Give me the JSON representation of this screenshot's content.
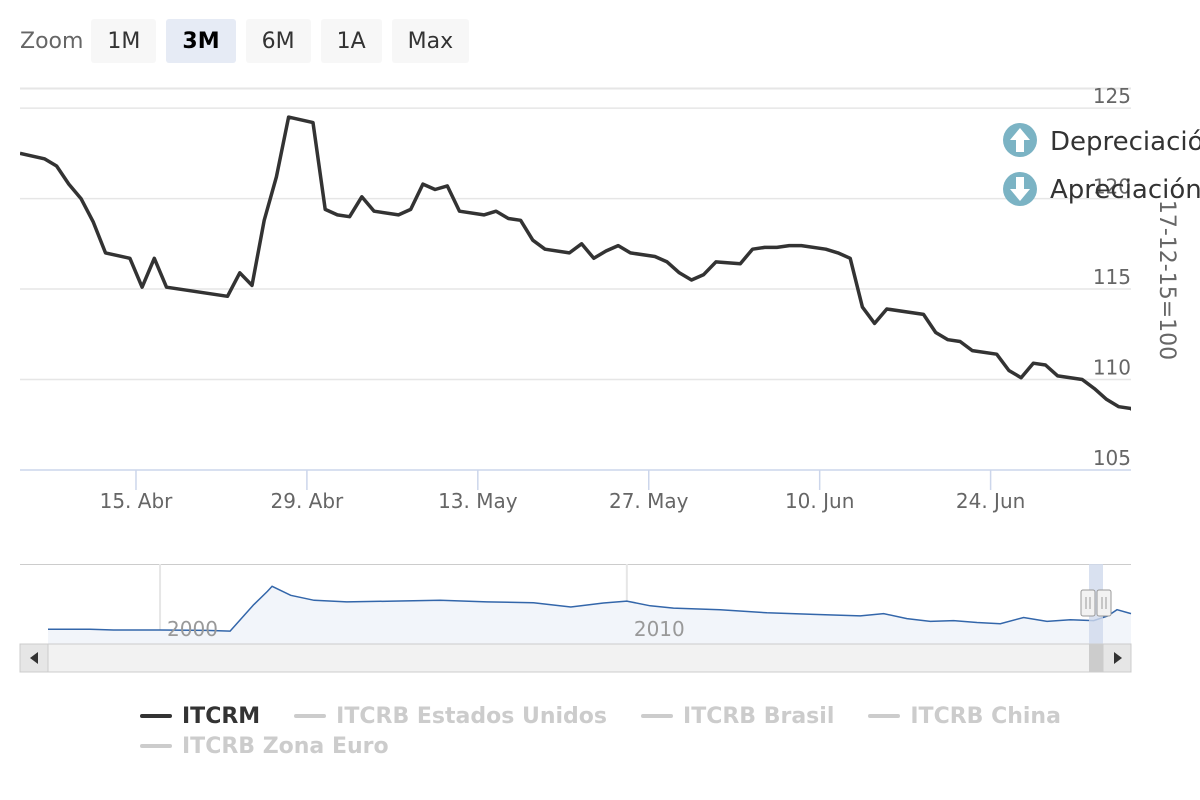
{
  "zoom": {
    "label": "Zoom",
    "buttons": [
      {
        "label": "1M",
        "selected": false
      },
      {
        "label": "3M",
        "selected": true
      },
      {
        "label": "6M",
        "selected": false
      },
      {
        "label": "1A",
        "selected": false
      },
      {
        "label": "Max",
        "selected": false
      }
    ]
  },
  "annotations": {
    "depreciation": "Depreciación",
    "appreciation": "Apreciación"
  },
  "colors": {
    "main_line": "#333333",
    "navigator_line": "#3366aa",
    "navigator_fill": "#f2f5fa",
    "grid": "#e6e6e6",
    "axis_label": "#666666",
    "annotation_icon": "#7bb3c4"
  },
  "chart_data": {
    "type": "line",
    "title": "",
    "ylabel": "17-12-15=100",
    "ylim": [
      105,
      126
    ],
    "y_ticks": [
      105,
      110,
      115,
      120,
      125
    ],
    "x_ticks": [
      {
        "day": 15,
        "label": "15. Abr"
      },
      {
        "day": 29,
        "label": "29. Abr"
      },
      {
        "day": 43,
        "label": "13. May"
      },
      {
        "day": 57,
        "label": "27. May"
      },
      {
        "day": 71,
        "label": "10. Jun"
      },
      {
        "day": 85,
        "label": "24. Jun"
      }
    ],
    "xlim": [
      5.5,
      96.5
    ],
    "grid": true,
    "series": [
      {
        "name": "ITCRM",
        "points": [
          [
            5.5,
            122.5
          ],
          [
            7.5,
            122.2
          ],
          [
            8.5,
            121.8
          ],
          [
            9.5,
            120.8
          ],
          [
            10.5,
            120.0
          ],
          [
            11.5,
            118.7
          ],
          [
            12.5,
            117.0
          ],
          [
            14.5,
            116.7
          ],
          [
            15.5,
            115.1
          ],
          [
            16.5,
            116.7
          ],
          [
            17.5,
            115.1
          ],
          [
            22.5,
            114.6
          ],
          [
            23.5,
            115.9
          ],
          [
            24.5,
            115.2
          ],
          [
            25.5,
            118.8
          ],
          [
            26.5,
            121.2
          ],
          [
            27.5,
            124.5
          ],
          [
            29.5,
            124.2
          ],
          [
            30.5,
            119.4
          ],
          [
            31.5,
            119.1
          ],
          [
            32.5,
            119.0
          ],
          [
            33.5,
            120.1
          ],
          [
            34.5,
            119.3
          ],
          [
            36.5,
            119.1
          ],
          [
            37.5,
            119.4
          ],
          [
            38.5,
            120.8
          ],
          [
            39.5,
            120.5
          ],
          [
            40.5,
            120.7
          ],
          [
            41.5,
            119.3
          ],
          [
            43.5,
            119.1
          ],
          [
            44.5,
            119.3
          ],
          [
            45.5,
            118.9
          ],
          [
            46.5,
            118.8
          ],
          [
            47.5,
            117.7
          ],
          [
            48.5,
            117.2
          ],
          [
            50.5,
            117.0
          ],
          [
            51.5,
            117.5
          ],
          [
            52.5,
            116.7
          ],
          [
            53.5,
            117.1
          ],
          [
            54.5,
            117.4
          ],
          [
            55.5,
            117.0
          ],
          [
            57.5,
            116.8
          ],
          [
            58.5,
            116.5
          ],
          [
            59.5,
            115.9
          ],
          [
            60.5,
            115.5
          ],
          [
            61.5,
            115.8
          ],
          [
            62.5,
            116.5
          ],
          [
            64.5,
            116.4
          ],
          [
            65.5,
            117.2
          ],
          [
            66.5,
            117.3
          ],
          [
            67.5,
            117.3
          ],
          [
            68.5,
            117.4
          ],
          [
            69.5,
            117.4
          ],
          [
            71.5,
            117.2
          ],
          [
            72.5,
            117.0
          ],
          [
            73.5,
            116.7
          ],
          [
            74.5,
            114.0
          ],
          [
            75.5,
            113.1
          ],
          [
            76.5,
            113.9
          ],
          [
            79.5,
            113.6
          ],
          [
            80.5,
            112.6
          ],
          [
            81.5,
            112.2
          ],
          [
            82.5,
            112.1
          ],
          [
            83.5,
            111.6
          ],
          [
            85.5,
            111.4
          ],
          [
            86.5,
            110.5
          ],
          [
            87.5,
            110.1
          ],
          [
            88.5,
            110.9
          ],
          [
            89.5,
            110.8
          ],
          [
            90.5,
            110.2
          ],
          [
            92.5,
            110.0
          ],
          [
            93.5,
            109.5
          ],
          [
            94.5,
            108.9
          ],
          [
            95.5,
            108.5
          ],
          [
            96.5,
            108.4
          ],
          [
            97.5,
            107.7
          ]
        ]
      }
    ],
    "navigator": {
      "year_labels": [
        {
          "year": 2000,
          "label": "2000"
        },
        {
          "year": 2010,
          "label": "2010"
        }
      ],
      "xlim": [
        1997.0,
        2020.8
      ],
      "ylim": [
        60,
        260
      ],
      "points": [
        [
          1997.6,
          98
        ],
        [
          1998.5,
          98
        ],
        [
          1999.0,
          96
        ],
        [
          2000.0,
          96
        ],
        [
          2001.0,
          95
        ],
        [
          2001.5,
          93
        ],
        [
          2002.0,
          160
        ],
        [
          2002.3,
          195
        ],
        [
          2002.4,
          208
        ],
        [
          2002.8,
          185
        ],
        [
          2003.3,
          172
        ],
        [
          2004.0,
          168
        ],
        [
          2005.0,
          170
        ],
        [
          2006.0,
          172
        ],
        [
          2007.0,
          168
        ],
        [
          2008.0,
          166
        ],
        [
          2008.8,
          155
        ],
        [
          2009.5,
          165
        ],
        [
          2010.0,
          170
        ],
        [
          2010.5,
          158
        ],
        [
          2011.0,
          152
        ],
        [
          2012.0,
          148
        ],
        [
          2013.0,
          140
        ],
        [
          2014.0,
          136
        ],
        [
          2015.0,
          132
        ],
        [
          2015.5,
          138
        ],
        [
          2016.0,
          125
        ],
        [
          2016.5,
          118
        ],
        [
          2017.0,
          120
        ],
        [
          2017.5,
          115
        ],
        [
          2018.0,
          112
        ],
        [
          2018.5,
          128
        ],
        [
          2019.0,
          118
        ],
        [
          2019.5,
          122
        ],
        [
          2020.0,
          120
        ],
        [
          2020.3,
          132
        ],
        [
          2020.5,
          148
        ],
        [
          2020.8,
          138
        ]
      ]
    },
    "legend": [
      {
        "name": "ITCRM",
        "active": true
      },
      {
        "name": "ITCRB Estados Unidos",
        "active": false
      },
      {
        "name": "ITCRB Brasil",
        "active": false
      },
      {
        "name": "ITCRB China",
        "active": false
      },
      {
        "name": "ITCRB Zona Euro",
        "active": false
      }
    ]
  }
}
